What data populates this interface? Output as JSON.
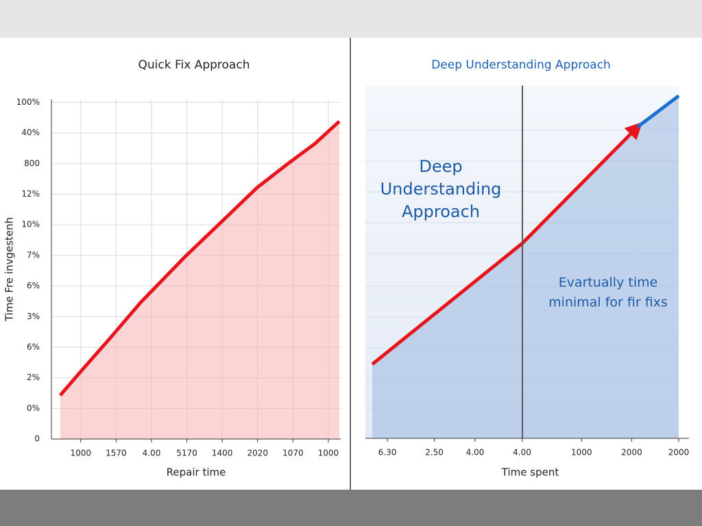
{
  "chart_data": [
    {
      "type": "line",
      "title": "Quick Fix Approach",
      "xlabel": "Repair time",
      "ylabel": "Time Fre invgestenh",
      "xlim": [
        -0.83,
        7.35
      ],
      "ylim": [
        0,
        11.1
      ],
      "xticks": [
        {
          "value": 0,
          "label": "1000"
        },
        {
          "value": 1,
          "label": "1570"
        },
        {
          "value": 2,
          "label": "4.00"
        },
        {
          "value": 3,
          "label": "5170"
        },
        {
          "value": 4,
          "label": "1400"
        },
        {
          "value": 5,
          "label": "2020"
        },
        {
          "value": 6,
          "label": "1070"
        },
        {
          "value": 7,
          "label": "1000"
        }
      ],
      "yticks": [
        {
          "value": 0,
          "label": "0"
        },
        {
          "value": 1,
          "label": "0%"
        },
        {
          "value": 2,
          "label": "2%"
        },
        {
          "value": 3,
          "label": "6%"
        },
        {
          "value": 4,
          "label": "3%"
        },
        {
          "value": 5,
          "label": "6%"
        },
        {
          "value": 6,
          "label": "7%"
        },
        {
          "value": 7,
          "label": "10%"
        },
        {
          "value": 8,
          "label": "12%"
        },
        {
          "value": 9,
          "label": "800"
        },
        {
          "value": 10,
          "label": "40%"
        },
        {
          "value": 11,
          "label": "100%"
        }
      ],
      "grid": true,
      "area_color": "#f7b3b3",
      "series": [
        {
          "color": "#e8141b",
          "x": [
            -0.58,
            0.04,
            0.81,
            1.69,
            2.95,
            3.91,
            4.98,
            5.85,
            6.63,
            7.31
          ],
          "values": [
            1.43,
            2.26,
            3.27,
            4.46,
            5.96,
            7.02,
            8.21,
            8.99,
            9.66,
            10.38
          ]
        }
      ]
    },
    {
      "type": "line",
      "title": "Deep Understanding Approach",
      "xlabel": "Time spent",
      "xlim": [
        0,
        100
      ],
      "ylim": [
        0,
        100
      ],
      "xticks": [
        {
          "value": 7,
          "label": "6.30"
        },
        {
          "value": 22,
          "label": "2.50"
        },
        {
          "value": 35,
          "label": "4.00"
        },
        {
          "value": 50,
          "label": "4.00"
        },
        {
          "value": 69,
          "label": "1000"
        },
        {
          "value": 85,
          "label": "2000"
        },
        {
          "value": 100,
          "label": "2000"
        }
      ],
      "grid": false,
      "area_color": "#9db8e0",
      "annotations": [
        [
          "Deep",
          "Understanding",
          "Approach"
        ],
        [
          "Evartually time",
          "minimal for fir fixs"
        ]
      ],
      "series": [
        {
          "color": "#e8141b",
          "arrow": true,
          "x": [
            2.2,
            50.1,
            86.9
          ],
          "values": [
            21,
            55.3,
            88.3
          ]
        },
        {
          "color": "#1a6fd0",
          "x": [
            86.9,
            100
          ],
          "values": [
            88.3,
            97.1
          ]
        }
      ]
    }
  ]
}
